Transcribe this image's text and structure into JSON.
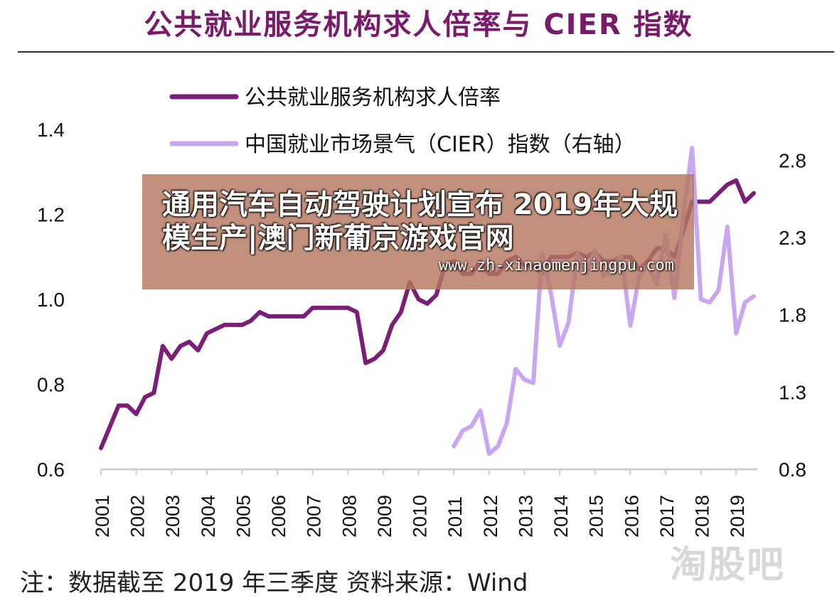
{
  "title": "公共就业服务机构求人倍率与 CIER 指数",
  "footnote": "注：数据截至 2019 年三季度 资料来源：Wind",
  "watermark": "淘股吧",
  "overlay": {
    "headline": "通用汽车自动驾驶计划宣布 2019年大规模生产|澳门新葡京游戏官网",
    "url": "www.zh-xinaomenjingpu.com"
  },
  "colors": {
    "series1": "#7b1e78",
    "series2": "#c9a6f2",
    "title": "#7a1a6a"
  },
  "chart_data": {
    "type": "line",
    "title": "公共就业服务机构求人倍率与 CIER 指数",
    "legend_position": "top-left",
    "grid": false,
    "x_ticks": [
      "2001",
      "2002",
      "2003",
      "2004",
      "2005",
      "2006",
      "2007",
      "2008",
      "2009",
      "2010",
      "2011",
      "2012",
      "2013",
      "2014",
      "2015",
      "2016",
      "2017",
      "2018",
      "2019"
    ],
    "xlim": [
      2001,
      2019.6
    ],
    "y_left": {
      "lim": [
        0.6,
        1.4
      ],
      "ticks": [
        "0.6",
        "0.8",
        "1.0",
        "1.2",
        "1.4"
      ]
    },
    "y_right": {
      "lim": [
        0.8,
        3.0
      ],
      "ticks": [
        "0.8",
        "1.3",
        "1.8",
        "2.3",
        "2.8"
      ]
    },
    "series": [
      {
        "name": "公共就业服务机构求人倍率",
        "axis": "left",
        "x": [
          2001.0,
          2001.25,
          2001.5,
          2001.75,
          2002.0,
          2002.25,
          2002.5,
          2002.75,
          2003.0,
          2003.25,
          2003.5,
          2003.75,
          2004.0,
          2004.25,
          2004.5,
          2004.75,
          2005.0,
          2005.25,
          2005.5,
          2005.75,
          2006.0,
          2006.25,
          2006.5,
          2006.75,
          2007.0,
          2007.25,
          2007.5,
          2007.75,
          2008.0,
          2008.25,
          2008.5,
          2008.75,
          2009.0,
          2009.25,
          2009.5,
          2009.75,
          2010.0,
          2010.25,
          2010.5,
          2010.75,
          2011.0,
          2011.25,
          2011.5,
          2011.75,
          2012.0,
          2012.25,
          2012.5,
          2012.75,
          2013.0,
          2013.25,
          2013.5,
          2013.75,
          2014.0,
          2014.25,
          2014.5,
          2014.75,
          2015.0,
          2015.25,
          2015.5,
          2015.75,
          2016.0,
          2016.25,
          2016.5,
          2016.75,
          2017.0,
          2017.25,
          2017.5,
          2017.75,
          2018.0,
          2018.25,
          2018.5,
          2018.75,
          2019.0,
          2019.25,
          2019.5
        ],
        "values": [
          0.65,
          0.7,
          0.75,
          0.75,
          0.73,
          0.77,
          0.78,
          0.89,
          0.86,
          0.89,
          0.9,
          0.88,
          0.92,
          0.93,
          0.94,
          0.94,
          0.94,
          0.95,
          0.97,
          0.96,
          0.96,
          0.96,
          0.96,
          0.96,
          0.98,
          0.98,
          0.98,
          0.98,
          0.98,
          0.97,
          0.85,
          0.86,
          0.88,
          0.94,
          0.97,
          1.04,
          1.0,
          0.99,
          1.01,
          1.08,
          1.09,
          1.06,
          1.06,
          1.09,
          1.06,
          1.06,
          1.09,
          1.1,
          1.08,
          1.08,
          1.06,
          1.1,
          1.1,
          1.1,
          1.11,
          1.1,
          1.11,
          1.09,
          1.09,
          1.1,
          1.1,
          1.07,
          1.09,
          1.12,
          1.12,
          1.1,
          1.16,
          1.23,
          1.23,
          1.23,
          1.25,
          1.27,
          1.28,
          1.23,
          1.25
        ]
      },
      {
        "name": "中国就业市场景气（CIER）指数（右轴）",
        "axis": "right",
        "x": [
          2011.0,
          2011.25,
          2011.5,
          2011.75,
          2012.0,
          2012.25,
          2012.5,
          2012.75,
          2013.0,
          2013.25,
          2013.5,
          2013.75,
          2014.0,
          2014.25,
          2014.5,
          2014.75,
          2015.0,
          2015.25,
          2015.5,
          2015.75,
          2016.0,
          2016.25,
          2016.5,
          2016.75,
          2017.0,
          2017.25,
          2017.5,
          2017.75,
          2018.0,
          2018.25,
          2018.5,
          2018.75,
          2019.0,
          2019.25,
          2019.5
        ],
        "values": [
          0.95,
          1.05,
          1.08,
          1.18,
          0.9,
          0.95,
          1.1,
          1.45,
          1.38,
          1.36,
          2.2,
          1.94,
          1.6,
          1.75,
          2.2,
          2.06,
          2.22,
          2.05,
          2.12,
          2.18,
          1.73,
          2.05,
          2.12,
          2.0,
          2.32,
          1.91,
          2.44,
          2.88,
          1.9,
          1.88,
          1.96,
          2.37,
          1.68,
          1.88,
          1.92
        ]
      }
    ]
  }
}
